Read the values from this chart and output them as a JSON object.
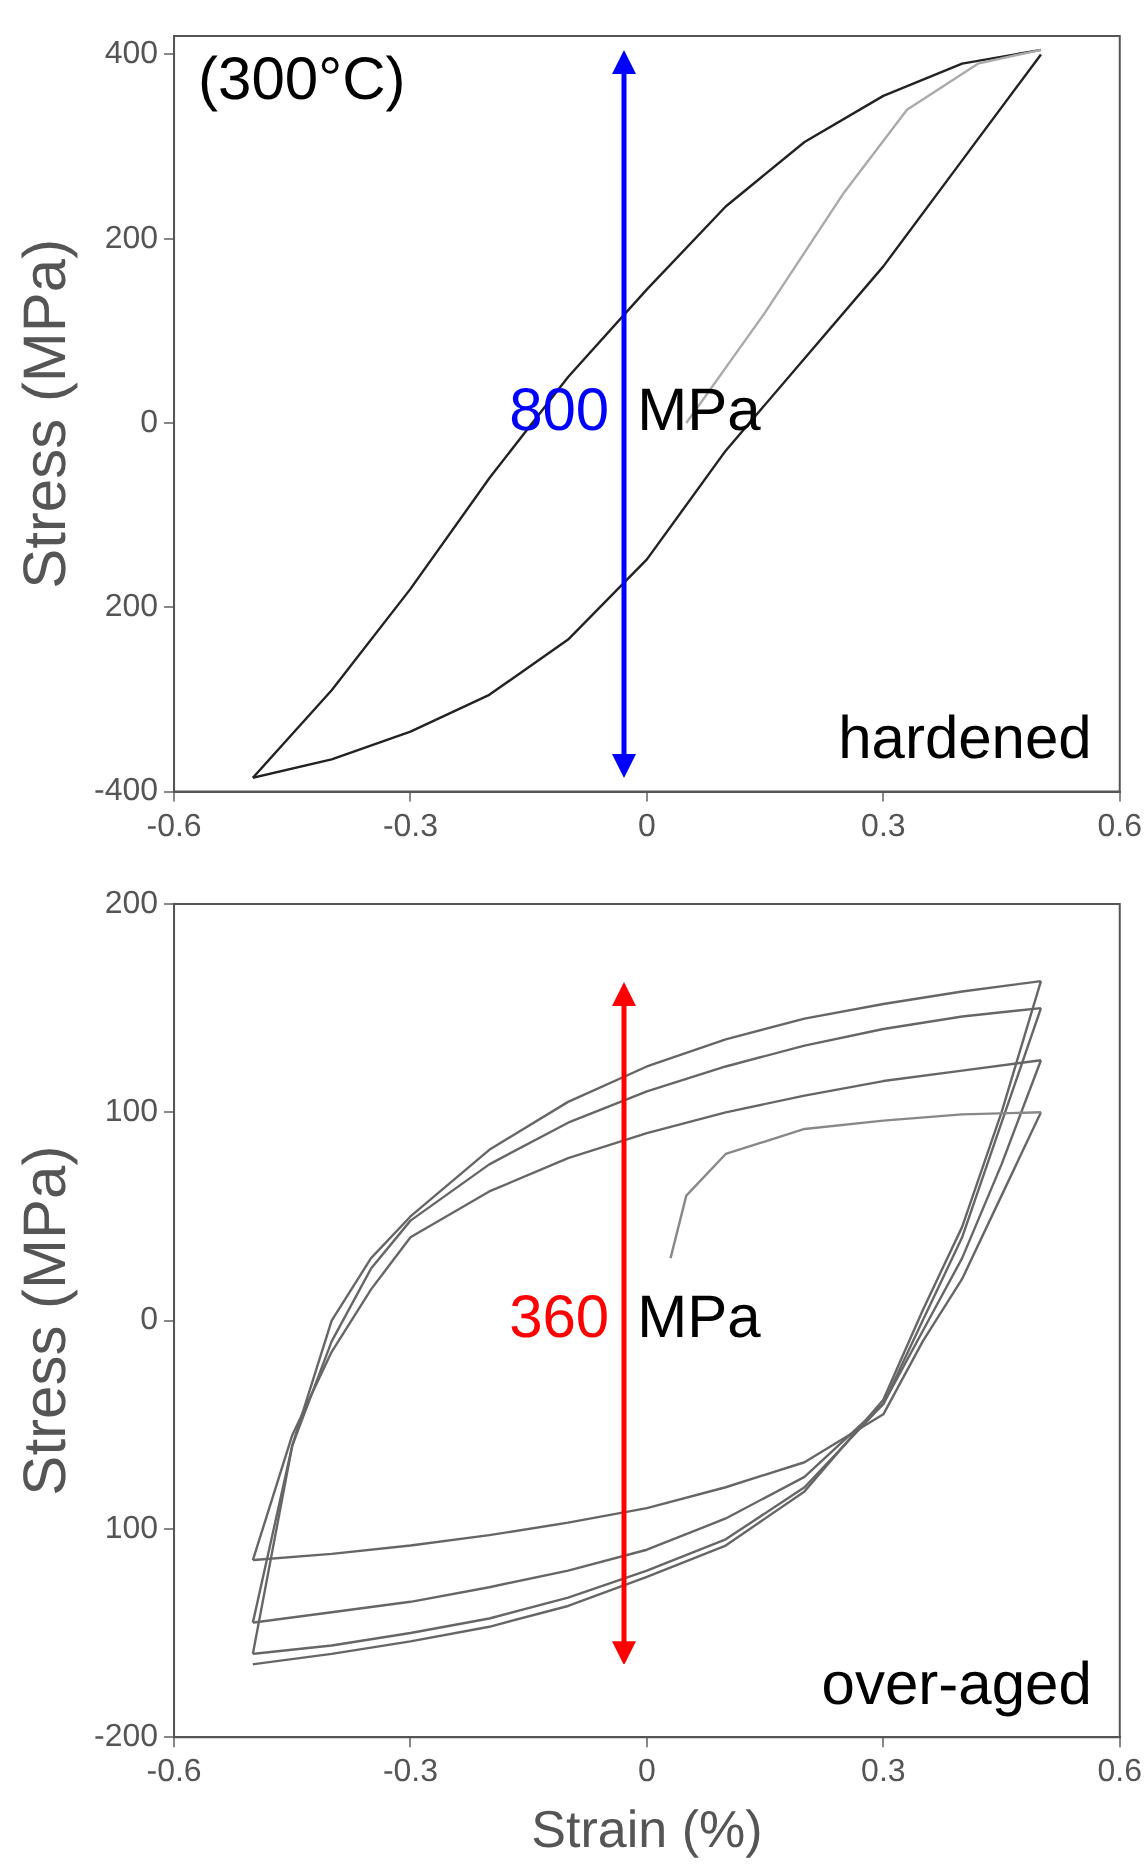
{
  "chart_data": [
    {
      "type": "line",
      "ylabel": "Stress (MPa)",
      "xlim": [
        -0.6,
        0.6
      ],
      "xticks": [
        -0.6,
        -0.3,
        0,
        0.3,
        0.6
      ],
      "ylim": [
        -400,
        420
      ],
      "yticks": [
        {
          "value": -400,
          "label": "-400"
        },
        {
          "value": -200,
          "label": "200"
        },
        0,
        200,
        400
      ],
      "grid": false,
      "legend": false,
      "marker": "none",
      "line_style": "solid",
      "annotations": [
        "(300°C)",
        "hardened"
      ],
      "ref_lines": [
        {
          "axis": "x",
          "value": -0.03,
          "label": "800 MPa",
          "color": "#0000ff"
        }
      ],
      "series": [
        {
          "color": "#aaaaaa",
          "x": [
            0.05,
            0.15,
            0.25,
            0.33,
            0.42,
            0.5
          ],
          "values": [
            0,
            120,
            250,
            340,
            390,
            405
          ]
        },
        {
          "color": "#222222",
          "x": [
            -0.5,
            -0.4,
            -0.3,
            -0.2,
            -0.1,
            0,
            0.1,
            0.2,
            0.3,
            0.4,
            0.5
          ],
          "values": [
            -385,
            -290,
            -180,
            -60,
            50,
            145,
            235,
            305,
            355,
            390,
            405
          ]
        },
        {
          "color": "#222222",
          "x": [
            0.5,
            0.4,
            0.3,
            0.2,
            0.1,
            0,
            -0.1,
            -0.2,
            -0.3,
            -0.4,
            -0.5
          ],
          "values": [
            400,
            285,
            170,
            70,
            -30,
            -148,
            -235,
            -295,
            -335,
            -365,
            -385
          ]
        }
      ]
    },
    {
      "type": "line",
      "xlabel": "Strain (%)",
      "ylabel": "Stress (MPa)",
      "xlim": [
        -0.6,
        0.6
      ],
      "xticks": [
        -0.6,
        -0.3,
        0,
        0.3,
        0.6
      ],
      "ylim": [
        -200,
        200
      ],
      "yticks": [
        {
          "value": -200,
          "label": "-200"
        },
        {
          "value": -100,
          "label": "100"
        },
        0,
        100,
        200
      ],
      "grid": false,
      "legend": false,
      "marker": "none",
      "line_style": "solid",
      "annotations": [
        "over-aged"
      ],
      "ref_lines": [
        {
          "axis": "x",
          "value": -0.03,
          "label": "360 MPa",
          "color": "#ff0000"
        }
      ],
      "series": [
        {
          "color": "#888888",
          "x": [
            0.03,
            0.05,
            0.1,
            0.2,
            0.3,
            0.4,
            0.5
          ],
          "values": [
            30,
            60,
            80,
            92,
            96,
            99,
            100
          ]
        },
        {
          "color": "#666666",
          "x": [
            0.5,
            0.45,
            0.4,
            0.35,
            0.3,
            0.2,
            0.1,
            0,
            -0.1,
            -0.2,
            -0.3,
            -0.4,
            -0.5
          ],
          "values": [
            100,
            60,
            20,
            -10,
            -45,
            -68,
            -80,
            -90,
            -97,
            -103,
            -108,
            -112,
            -115
          ]
        },
        {
          "color": "#666666",
          "x": [
            -0.5,
            -0.45,
            -0.4,
            -0.35,
            -0.3,
            -0.2,
            -0.1,
            0,
            0.1,
            0.2,
            0.3,
            0.4,
            0.5
          ],
          "values": [
            -115,
            -55,
            -15,
            15,
            40,
            62,
            78,
            90,
            100,
            108,
            115,
            120,
            125
          ]
        },
        {
          "color": "#666666",
          "x": [
            0.5,
            0.45,
            0.4,
            0.35,
            0.3,
            0.2,
            0.1,
            0,
            -0.1,
            -0.2,
            -0.3,
            -0.4,
            -0.5
          ],
          "values": [
            125,
            75,
            30,
            -5,
            -40,
            -75,
            -95,
            -110,
            -120,
            -128,
            -135,
            -140,
            -145
          ]
        },
        {
          "color": "#666666",
          "x": [
            -0.5,
            -0.45,
            -0.4,
            -0.35,
            -0.3,
            -0.2,
            -0.1,
            0,
            0.1,
            0.2,
            0.3,
            0.4,
            0.5
          ],
          "values": [
            -145,
            -60,
            -10,
            25,
            48,
            75,
            95,
            110,
            122,
            132,
            140,
            146,
            150
          ]
        },
        {
          "color": "#666666",
          "x": [
            0.5,
            0.45,
            0.4,
            0.35,
            0.3,
            0.2,
            0.1,
            0,
            -0.1,
            -0.2,
            -0.3,
            -0.4,
            -0.5
          ],
          "values": [
            150,
            95,
            40,
            0,
            -40,
            -80,
            -105,
            -120,
            -133,
            -143,
            -150,
            -156,
            -160
          ]
        },
        {
          "color": "#666666",
          "x": [
            -0.5,
            -0.45,
            -0.4,
            -0.35,
            -0.3,
            -0.2,
            -0.1,
            0,
            0.1,
            0.2,
            0.3,
            0.4,
            0.5
          ],
          "values": [
            -160,
            -60,
            0,
            30,
            50,
            82,
            105,
            122,
            135,
            145,
            152,
            158,
            163
          ]
        },
        {
          "color": "#666666",
          "x": [
            0.5,
            0.45,
            0.4,
            0.35,
            0.3,
            0.2,
            0.1,
            0,
            -0.1,
            -0.2,
            -0.3,
            -0.4,
            -0.5
          ],
          "values": [
            163,
            100,
            45,
            5,
            -38,
            -82,
            -108,
            -123,
            -137,
            -147,
            -154,
            -160,
            -165
          ]
        }
      ]
    }
  ]
}
